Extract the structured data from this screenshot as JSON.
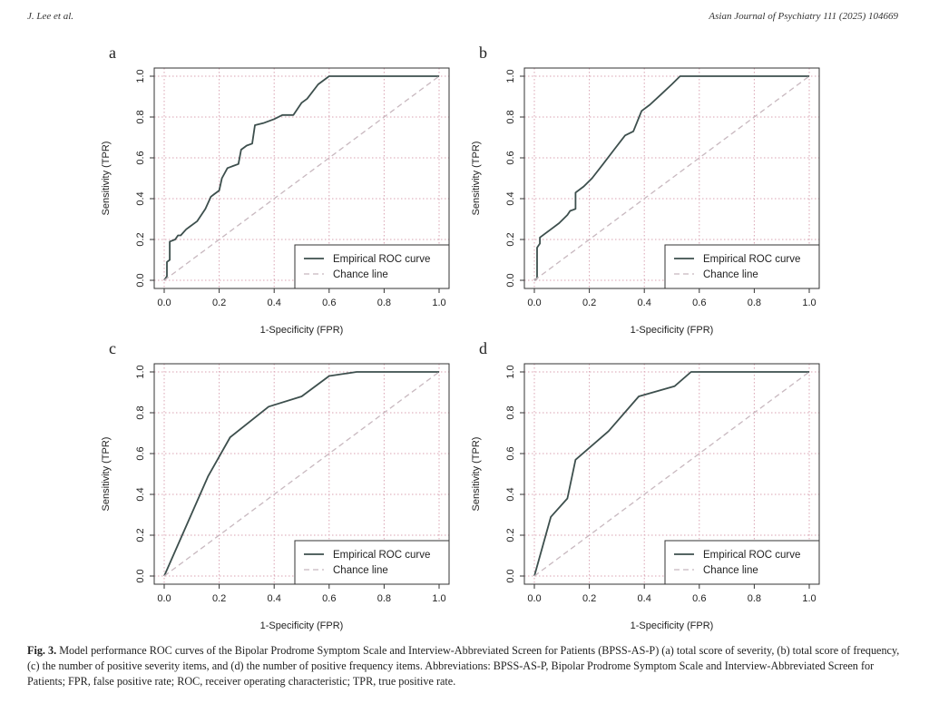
{
  "header": {
    "left": "J. Lee et al.",
    "right": "Asian Journal of Psychiatry 111 (2025) 104669"
  },
  "caption": {
    "label": "Fig. 3.",
    "text": "Model performance ROC curves of the Bipolar Prodrome Symptom Scale and Interview-Abbreviated Screen for Patients (BPSS-AS-P) (a) total score of severity, (b) total score of frequency, (c) the number of positive severity items, and (d) the number of positive frequency items. Abbreviations: BPSS-AS-P, Bipolar Prodrome Symptom Scale and Interview-Abbreviated Screen for Patients; FPR, false positive rate; ROC, receiver operating characteristic; TPR, true positive rate."
  },
  "colors": {
    "roc_line": "#3d4f4d",
    "chance_line": "#c8b8bf",
    "grid": "#d9a3b2",
    "axis": "#333333"
  },
  "chart_data": [
    {
      "panel": "a",
      "type": "line",
      "xlabel": "1-Specificity (FPR)",
      "ylabel": "Sensitivity (TPR)",
      "xlim": [
        0,
        1
      ],
      "ylim": [
        0,
        1
      ],
      "xticks": [
        "0.0",
        "0.2",
        "0.4",
        "0.6",
        "0.8",
        "1.0"
      ],
      "yticks": [
        "0.0",
        "0.2",
        "0.4",
        "0.6",
        "0.8",
        "1.0"
      ],
      "grid": true,
      "legend_position": "bottom-right",
      "series": [
        {
          "name": "Empirical ROC curve",
          "style": "solid",
          "x": [
            0,
            0.01,
            0.01,
            0.02,
            0.02,
            0.04,
            0.05,
            0.06,
            0.08,
            0.09,
            0.12,
            0.15,
            0.17,
            0.18,
            0.2,
            0.21,
            0.23,
            0.25,
            0.27,
            0.28,
            0.3,
            0.32,
            0.33,
            0.36,
            0.4,
            0.43,
            0.47,
            0.5,
            0.52,
            0.56,
            0.6,
            0.65,
            0.75,
            0.9,
            1.0
          ],
          "y": [
            0,
            0.02,
            0.09,
            0.1,
            0.19,
            0.2,
            0.22,
            0.22,
            0.25,
            0.26,
            0.29,
            0.35,
            0.41,
            0.42,
            0.44,
            0.5,
            0.55,
            0.56,
            0.57,
            0.64,
            0.66,
            0.67,
            0.76,
            0.77,
            0.79,
            0.81,
            0.81,
            0.87,
            0.89,
            0.96,
            1.0,
            1.0,
            1.0,
            1.0,
            1.0
          ]
        },
        {
          "name": "Chance line",
          "style": "dashed",
          "x": [
            0,
            1
          ],
          "y": [
            0,
            1
          ]
        }
      ]
    },
    {
      "panel": "b",
      "type": "line",
      "xlabel": "1-Specificity (FPR)",
      "ylabel": "Sensitivity (TPR)",
      "xlim": [
        0,
        1
      ],
      "ylim": [
        0,
        1
      ],
      "xticks": [
        "0.0",
        "0.2",
        "0.4",
        "0.6",
        "0.8",
        "1.0"
      ],
      "yticks": [
        "0.0",
        "0.2",
        "0.4",
        "0.6",
        "0.8",
        "1.0"
      ],
      "grid": true,
      "legend_position": "bottom-right",
      "series": [
        {
          "name": "Empirical ROC curve",
          "style": "solid",
          "x": [
            0,
            0.01,
            0.01,
            0.02,
            0.02,
            0.06,
            0.09,
            0.12,
            0.13,
            0.15,
            0.15,
            0.18,
            0.21,
            0.25,
            0.29,
            0.33,
            0.36,
            0.39,
            0.42,
            0.46,
            0.5,
            0.53,
            0.6,
            0.8,
            1.0
          ],
          "y": [
            0,
            0.01,
            0.16,
            0.18,
            0.21,
            0.25,
            0.28,
            0.32,
            0.34,
            0.35,
            0.43,
            0.46,
            0.5,
            0.57,
            0.64,
            0.71,
            0.73,
            0.83,
            0.86,
            0.91,
            0.96,
            1.0,
            1.0,
            1.0,
            1.0
          ]
        },
        {
          "name": "Chance line",
          "style": "dashed",
          "x": [
            0,
            1
          ],
          "y": [
            0,
            1
          ]
        }
      ]
    },
    {
      "panel": "c",
      "type": "line",
      "xlabel": "1-Specificity (FPR)",
      "ylabel": "Sensitivity (TPR)",
      "xlim": [
        0,
        1
      ],
      "ylim": [
        0,
        1
      ],
      "xticks": [
        "0.0",
        "0.2",
        "0.4",
        "0.6",
        "0.8",
        "1.0"
      ],
      "yticks": [
        "0.0",
        "0.2",
        "0.4",
        "0.6",
        "0.8",
        "1.0"
      ],
      "grid": true,
      "legend_position": "bottom-right",
      "series": [
        {
          "name": "Empirical ROC curve",
          "style": "solid",
          "x": [
            0,
            0.16,
            0.24,
            0.38,
            0.5,
            0.6,
            0.7,
            0.8,
            1.0
          ],
          "y": [
            0,
            0.49,
            0.68,
            0.83,
            0.88,
            0.98,
            1.0,
            1.0,
            1.0
          ]
        },
        {
          "name": "Chance line",
          "style": "dashed",
          "x": [
            0,
            1
          ],
          "y": [
            0,
            1
          ]
        }
      ]
    },
    {
      "panel": "d",
      "type": "line",
      "xlabel": "1-Specificity (FPR)",
      "ylabel": "Sensitivity (TPR)",
      "xlim": [
        0,
        1
      ],
      "ylim": [
        0,
        1
      ],
      "xticks": [
        "0.0",
        "0.2",
        "0.4",
        "0.6",
        "0.8",
        "1.0"
      ],
      "yticks": [
        "0.0",
        "0.2",
        "0.4",
        "0.6",
        "0.8",
        "1.0"
      ],
      "grid": true,
      "legend_position": "bottom-right",
      "series": [
        {
          "name": "Empirical ROC curve",
          "style": "solid",
          "x": [
            0,
            0.06,
            0.12,
            0.15,
            0.27,
            0.38,
            0.51,
            0.57,
            0.65,
            0.8,
            1.0
          ],
          "y": [
            0,
            0.29,
            0.38,
            0.57,
            0.71,
            0.88,
            0.93,
            1.0,
            1.0,
            1.0,
            1.0
          ]
        },
        {
          "name": "Chance line",
          "style": "dashed",
          "x": [
            0,
            1
          ],
          "y": [
            0,
            1
          ]
        }
      ]
    }
  ]
}
